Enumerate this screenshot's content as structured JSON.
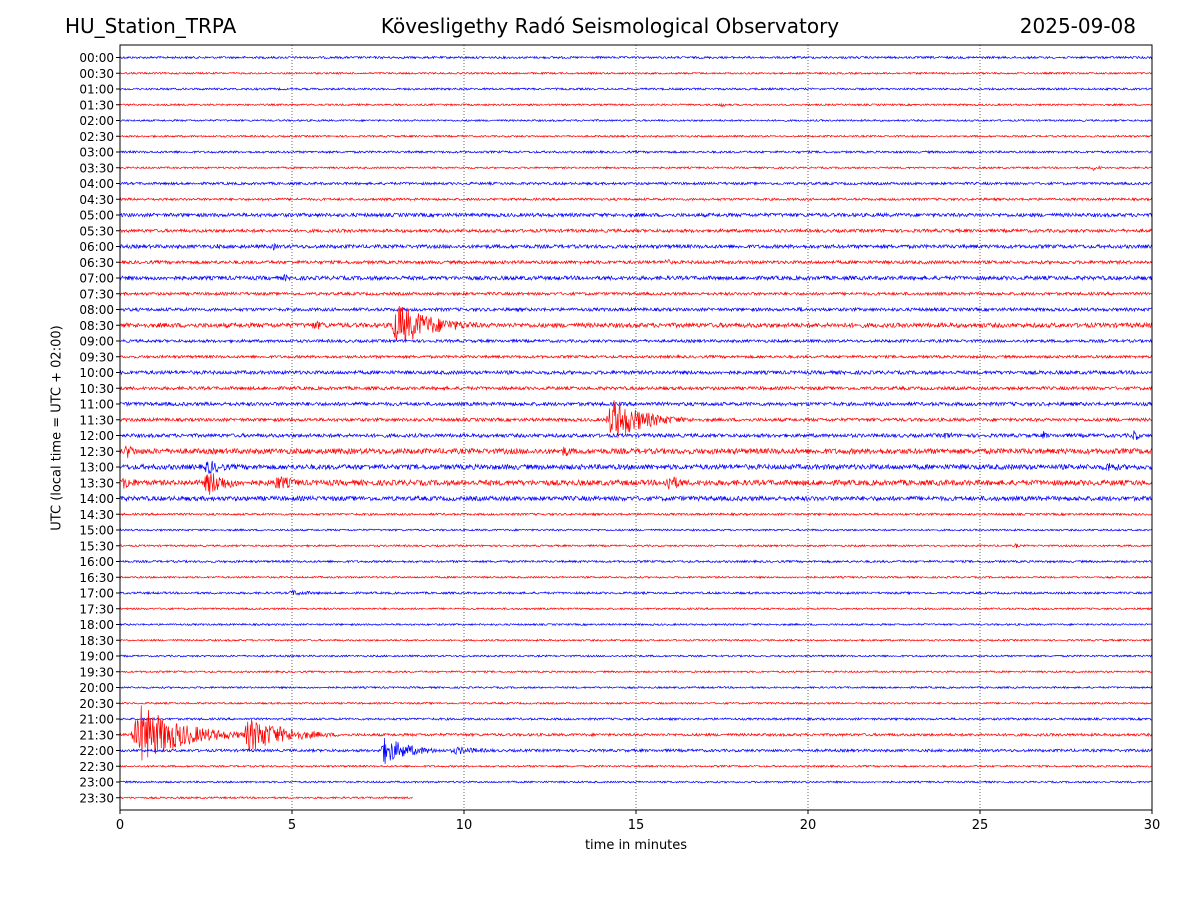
{
  "header": {
    "station": "HU_Station_TRPA",
    "observatory": "Kövesligethy Radó Seismological Observatory",
    "date": "2025-09-08"
  },
  "chart_data": {
    "type": "line",
    "title": "Kövesligethy Radó Seismological Observatory",
    "xlabel": "time in minutes",
    "ylabel": "UTC (local time = UTC + 02:00)",
    "xlim": [
      0,
      30
    ],
    "x_ticks": [
      0,
      5,
      10,
      15,
      20,
      25,
      30
    ],
    "grid": "vertical dotted lines at x ticks",
    "colors": {
      "even_rows": "#0000ff",
      "odd_rows": "#ff0000"
    },
    "rows": [
      "00:00",
      "00:30",
      "01:00",
      "01:30",
      "02:00",
      "02:30",
      "03:00",
      "03:30",
      "04:00",
      "04:30",
      "05:00",
      "05:30",
      "06:00",
      "06:30",
      "07:00",
      "07:30",
      "08:00",
      "08:30",
      "09:00",
      "09:30",
      "10:00",
      "10:30",
      "11:00",
      "11:30",
      "12:00",
      "12:30",
      "13:00",
      "13:30",
      "14:00",
      "14:30",
      "15:00",
      "15:30",
      "16:00",
      "16:30",
      "17:00",
      "17:30",
      "18:00",
      "18:30",
      "19:00",
      "19:30",
      "20:00",
      "20:30",
      "21:00",
      "21:30",
      "22:00",
      "22:30",
      "23:00",
      "23:30"
    ],
    "noise_level": [
      1.2,
      1.0,
      1.1,
      1.0,
      1.0,
      1.0,
      1.2,
      1.0,
      1.4,
      1.3,
      2.0,
      1.8,
      2.0,
      1.8,
      2.2,
      1.6,
      1.8,
      2.5,
      1.6,
      1.5,
      2.0,
      1.8,
      2.0,
      1.8,
      2.0,
      3.0,
      2.8,
      3.0,
      2.5,
      1.2,
      1.0,
      1.0,
      1.2,
      1.0,
      1.2,
      1.0,
      1.0,
      1.0,
      1.0,
      1.0,
      1.0,
      1.0,
      1.2,
      1.5,
      1.5,
      1.0,
      1.0,
      1.0
    ],
    "last_row_end_minute": 8.5,
    "events": [
      {
        "row": "01:30",
        "start": 17.4,
        "dur": 0.6,
        "amp": 3
      },
      {
        "row": "03:30",
        "start": 28.2,
        "dur": 1.0,
        "amp": 3
      },
      {
        "row": "06:00",
        "start": 2.8,
        "dur": 0.4,
        "amp": 3
      },
      {
        "row": "06:00",
        "start": 4.4,
        "dur": 0.6,
        "amp": 4
      },
      {
        "row": "06:30",
        "start": 15.8,
        "dur": 0.8,
        "amp": 4
      },
      {
        "row": "07:00",
        "start": 4.7,
        "dur": 0.8,
        "amp": 4
      },
      {
        "row": "08:00",
        "start": 19.7,
        "dur": 0.8,
        "amp": 3
      },
      {
        "row": "08:30",
        "start": 5.5,
        "dur": 1.8,
        "amp": 5
      },
      {
        "row": "08:30",
        "start": 7.8,
        "dur": 3.5,
        "amp": 22
      },
      {
        "row": "11:30",
        "start": 14.1,
        "dur": 3.0,
        "amp": 22
      },
      {
        "row": "12:00",
        "start": 23.9,
        "dur": 1.2,
        "amp": 4
      },
      {
        "row": "12:00",
        "start": 26.8,
        "dur": 0.5,
        "amp": 5
      },
      {
        "row": "12:00",
        "start": 29.4,
        "dur": 0.5,
        "amp": 9
      },
      {
        "row": "12:30",
        "start": 0.1,
        "dur": 1.1,
        "amp": 8
      },
      {
        "row": "12:30",
        "start": 12.8,
        "dur": 1.2,
        "amp": 6
      },
      {
        "row": "13:00",
        "start": 2.4,
        "dur": 1.8,
        "amp": 8
      },
      {
        "row": "13:00",
        "start": 28.6,
        "dur": 1.4,
        "amp": 6
      },
      {
        "row": "13:30",
        "start": 0.0,
        "dur": 1.5,
        "amp": 7
      },
      {
        "row": "13:30",
        "start": 2.4,
        "dur": 2.0,
        "amp": 14
      },
      {
        "row": "13:30",
        "start": 4.4,
        "dur": 2.2,
        "amp": 8
      },
      {
        "row": "13:30",
        "start": 15.8,
        "dur": 1.4,
        "amp": 10
      },
      {
        "row": "15:30",
        "start": 26.0,
        "dur": 0.4,
        "amp": 3
      },
      {
        "row": "17:00",
        "start": 4.8,
        "dur": 2.6,
        "amp": 3
      },
      {
        "row": "21:30",
        "start": 0.3,
        "dur": 4.0,
        "amp": 30
      },
      {
        "row": "21:30",
        "start": 3.5,
        "dur": 3.5,
        "amp": 18
      },
      {
        "row": "22:00",
        "start": 7.5,
        "dur": 2.5,
        "amp": 14
      },
      {
        "row": "22:00",
        "start": 9.5,
        "dur": 3.5,
        "amp": 4
      }
    ]
  }
}
